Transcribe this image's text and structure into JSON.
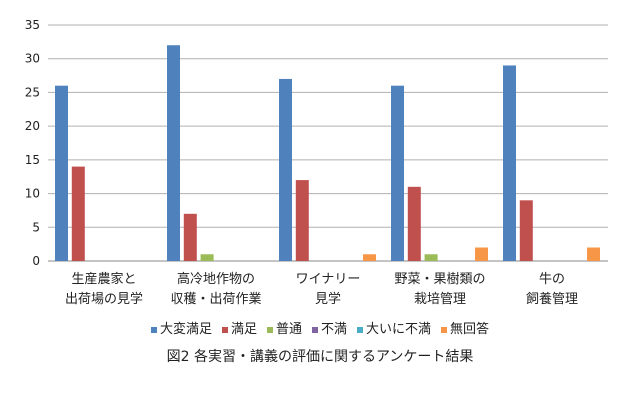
{
  "chart_data": {
    "type": "bar",
    "title": "図2  各実習・講義の評価に関するアンケート結果",
    "xlabel": "",
    "ylabel": "",
    "ylim": [
      0,
      35
    ],
    "yticks": [
      0,
      5,
      10,
      15,
      20,
      25,
      30,
      35
    ],
    "grid": true,
    "legend_position": "bottom",
    "categories": [
      [
        "生産農家と",
        "出荷場の見学"
      ],
      [
        "高冷地作物の",
        "収穫・出荷作業"
      ],
      [
        "ワイナリー",
        "見学"
      ],
      [
        "野菜・果樹類の",
        "栽培管理"
      ],
      [
        "牛の",
        "飼養管理"
      ]
    ],
    "series": [
      {
        "name": "大変満足",
        "color": "#4f81bd",
        "values": [
          26,
          32,
          27,
          26,
          29
        ]
      },
      {
        "name": "満足",
        "color": "#c0504d",
        "values": [
          14,
          7,
          12,
          11,
          9
        ]
      },
      {
        "name": "普通",
        "color": "#9bbb59",
        "values": [
          0,
          1,
          0,
          1,
          0
        ]
      },
      {
        "name": "不満",
        "color": "#8064a2",
        "values": [
          0,
          0,
          0,
          0,
          0
        ]
      },
      {
        "name": "大いに不満",
        "color": "#4bacc6",
        "values": [
          0,
          0,
          0,
          0,
          0
        ]
      },
      {
        "name": "無回答",
        "color": "#f79646",
        "values": [
          0,
          0,
          1,
          2,
          2
        ]
      }
    ]
  }
}
